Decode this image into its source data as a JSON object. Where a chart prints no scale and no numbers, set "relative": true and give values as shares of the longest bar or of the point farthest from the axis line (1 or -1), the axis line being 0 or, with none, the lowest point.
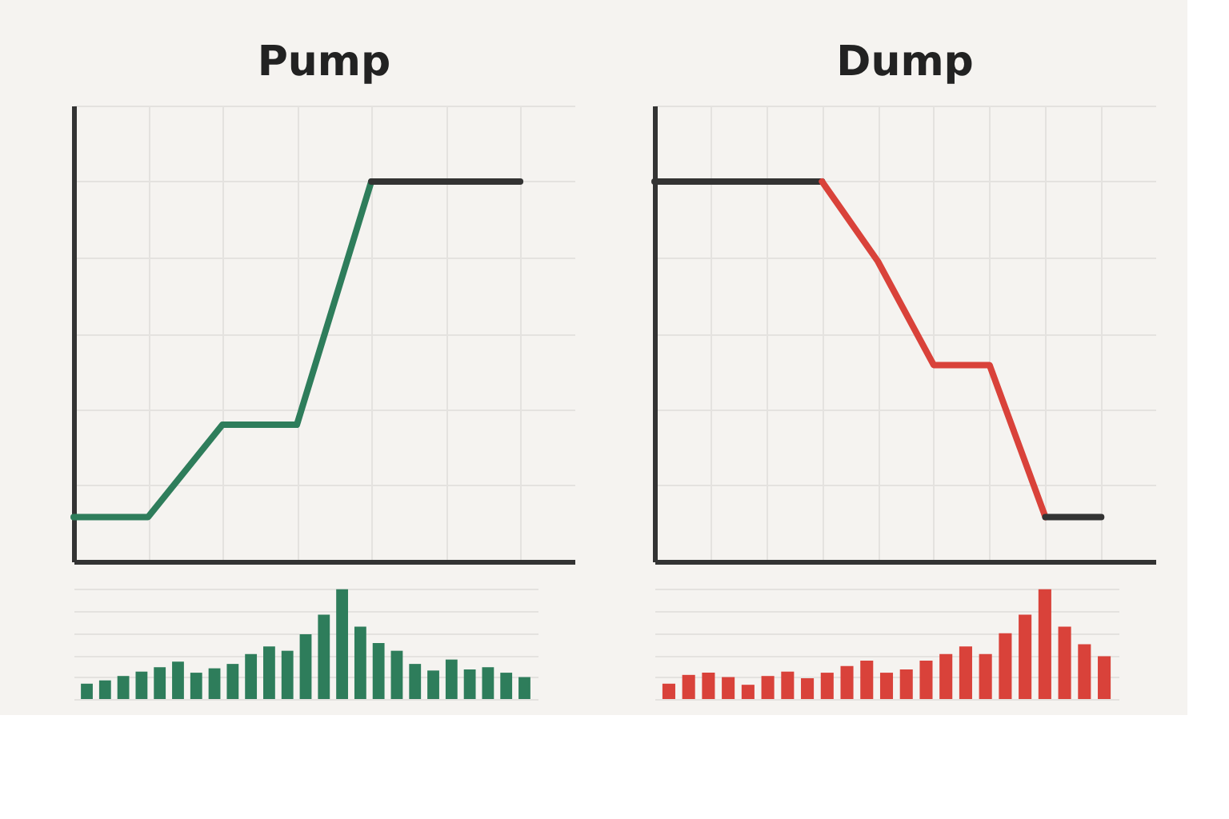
{
  "chart_data": [
    {
      "type": "line",
      "title": "Pump",
      "relative": true,
      "grid": true,
      "categories": [
        null,
        null,
        null,
        null,
        null,
        null,
        null
      ],
      "series": [
        {
          "color": "#2e7d5b",
          "values": [
            0.117,
            0.117,
            0.36,
            0.36,
            1,
            null,
            null
          ]
        },
        {
          "color": "#333333",
          "values": [
            null,
            null,
            null,
            null,
            1,
            1,
            1
          ]
        }
      ]
    },
    {
      "type": "bar",
      "relative": true,
      "grid": "y",
      "color": "#2e7d5b",
      "categories": [
        null,
        null,
        null,
        null,
        null,
        null,
        null,
        null,
        null,
        null,
        null,
        null,
        null,
        null,
        null,
        null,
        null,
        null,
        null,
        null,
        null,
        null,
        null,
        null,
        null
      ],
      "values": [
        0.14,
        0.17,
        0.21,
        0.25,
        0.29,
        0.34,
        0.24,
        0.28,
        0.32,
        0.41,
        0.48,
        0.44,
        0.59,
        0.77,
        1,
        0.66,
        0.51,
        0.44,
        0.32,
        0.26,
        0.36,
        0.27,
        0.29,
        0.24,
        0.2
      ]
    },
    {
      "type": "line",
      "title": "Dump",
      "relative": true,
      "grid": true,
      "categories": [
        null,
        null,
        null,
        null,
        null,
        null,
        null,
        null,
        null
      ],
      "series": [
        {
          "color": "#333333",
          "values": [
            1,
            1,
            1,
            1,
            null,
            null,
            null,
            null,
            null
          ]
        },
        {
          "color": "#d9423a",
          "values": [
            null,
            null,
            null,
            1,
            0.79,
            0.517,
            0.517,
            0.117,
            null
          ]
        },
        {
          "color": "#333333",
          "values": [
            null,
            null,
            null,
            null,
            null,
            null,
            null,
            0.117,
            0.117
          ]
        }
      ]
    },
    {
      "type": "bar",
      "relative": true,
      "grid": "y",
      "color": "#d9423a",
      "categories": [
        null,
        null,
        null,
        null,
        null,
        null,
        null,
        null,
        null,
        null,
        null,
        null,
        null,
        null,
        null,
        null,
        null,
        null,
        null,
        null,
        null,
        null,
        null
      ],
      "values": [
        0.14,
        0.22,
        0.24,
        0.2,
        0.13,
        0.21,
        0.25,
        0.19,
        0.24,
        0.3,
        0.35,
        0.24,
        0.27,
        0.35,
        0.41,
        0.48,
        0.41,
        0.6,
        0.77,
        1,
        0.66,
        0.5,
        0.39
      ]
    }
  ]
}
